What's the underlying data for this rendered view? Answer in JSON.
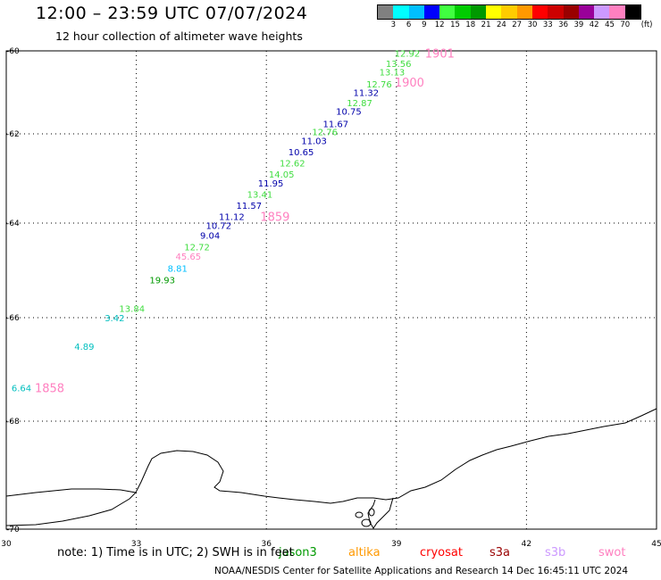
{
  "header": {
    "title": "12:00 – 23:59 UTC 07/07/2024",
    "subtitle": "12 hour collection of altimeter wave heights"
  },
  "legend": {
    "unit": "(ft)",
    "colors": [
      "#808080",
      "#00ffff",
      "#00bfff",
      "#0000ff",
      "#40ff40",
      "#00cc00",
      "#009900",
      "#ffff00",
      "#ffcc00",
      "#ff9900",
      "#ff0000",
      "#cc0000",
      "#990000",
      "#990099",
      "#cc99ff",
      "#ff80c0",
      "#000000"
    ],
    "labels": [
      "3",
      "6",
      "9",
      "12",
      "15",
      "18",
      "21",
      "24",
      "27",
      "30",
      "33",
      "36",
      "39",
      "42",
      "45",
      "70"
    ]
  },
  "map": {
    "lon_ticks": [
      "30",
      "33",
      "36",
      "39",
      "42",
      "45"
    ],
    "lat_ticks": [
      "-60",
      "-62",
      "-64",
      "-66",
      "-68",
      "-70"
    ],
    "lon_range": [
      30,
      45
    ],
    "lat_range": [
      -60,
      -70
    ]
  },
  "track_labels": [
    {
      "text": "1901",
      "lon": 40.0,
      "lat": -60.05,
      "color": "#ff80c0"
    },
    {
      "text": "1900",
      "lon": 39.3,
      "lat": -60.75,
      "color": "#ff80c0"
    },
    {
      "text": "1859",
      "lon": 36.2,
      "lat": -63.85,
      "color": "#ff80c0"
    },
    {
      "text": "1858",
      "lon": 31.0,
      "lat": -67.35,
      "color": "#ff80c0"
    }
  ],
  "wave_heights": [
    {
      "value": "12.92",
      "lon": 39.25,
      "lat": -60.05,
      "color": "#40dd40"
    },
    {
      "value": "13.56",
      "lon": 39.05,
      "lat": -60.3,
      "color": "#40dd40"
    },
    {
      "value": "13.13",
      "lon": 38.9,
      "lat": -60.5,
      "color": "#40dd40"
    },
    {
      "value": "12.76",
      "lon": 38.6,
      "lat": -60.8,
      "color": "#40dd40"
    },
    {
      "value": "11.32",
      "lon": 38.3,
      "lat": -61.0,
      "color": "#0000aa"
    },
    {
      "value": "12.87",
      "lon": 38.15,
      "lat": -61.25,
      "color": "#40dd40"
    },
    {
      "value": "10.75",
      "lon": 37.9,
      "lat": -61.45,
      "color": "#0000aa"
    },
    {
      "value": "11.67",
      "lon": 37.6,
      "lat": -61.75,
      "color": "#0000aa"
    },
    {
      "value": "12.76",
      "lon": 37.35,
      "lat": -61.95,
      "color": "#40dd40"
    },
    {
      "value": "11.03",
      "lon": 37.1,
      "lat": -62.15,
      "color": "#0000aa"
    },
    {
      "value": "10.65",
      "lon": 36.8,
      "lat": -62.4,
      "color": "#0000aa"
    },
    {
      "value": "12.62",
      "lon": 36.6,
      "lat": -62.65,
      "color": "#40dd40"
    },
    {
      "value": "14.05",
      "lon": 36.35,
      "lat": -62.9,
      "color": "#40dd40"
    },
    {
      "value": "11.95",
      "lon": 36.1,
      "lat": -63.1,
      "color": "#0000aa"
    },
    {
      "value": "13.41",
      "lon": 35.85,
      "lat": -63.35,
      "color": "#40dd40"
    },
    {
      "value": "11.57",
      "lon": 35.6,
      "lat": -63.6,
      "color": "#0000aa"
    },
    {
      "value": "11.12",
      "lon": 35.2,
      "lat": -63.85,
      "color": "#0000aa"
    },
    {
      "value": "10.72",
      "lon": 34.9,
      "lat": -64.05,
      "color": "#0000aa"
    },
    {
      "value": "9.04",
      "lon": 34.7,
      "lat": -64.25,
      "color": "#0000aa"
    },
    {
      "value": "12.72",
      "lon": 34.4,
      "lat": -64.5,
      "color": "#40dd40"
    },
    {
      "value": "45.65",
      "lon": 34.2,
      "lat": -64.7,
      "color": "#ff80c0"
    },
    {
      "value": "8.81",
      "lon": 33.95,
      "lat": -64.95,
      "color": "#00bfff"
    },
    {
      "value": "19.93",
      "lon": 33.6,
      "lat": -65.2,
      "color": "#009900"
    },
    {
      "value": "13.84",
      "lon": 32.9,
      "lat": -65.8,
      "color": "#40dd40"
    },
    {
      "value": "3.42",
      "lon": 32.5,
      "lat": -66.0,
      "color": "#00bfbf"
    },
    {
      "value": "4.89",
      "lon": 31.8,
      "lat": -66.55,
      "color": "#00bfbf"
    },
    {
      "value": "6.64",
      "lon": 30.35,
      "lat": -67.35,
      "color": "#00bfbf"
    }
  ],
  "footer": {
    "note": "note:  1) Time is in UTC;  2) SWH is in feet",
    "credit": "NOAA/NESDIS Center for Satellite Applications and Research    14 Dec 16:45:11 UTC 2024",
    "satellites": [
      {
        "name": "jason3",
        "color": "#009900"
      },
      {
        "name": "altika",
        "color": "#ff9900"
      },
      {
        "name": "cryosat",
        "color": "#ff0000"
      },
      {
        "name": "s3a",
        "color": "#990000"
      },
      {
        "name": "s3b",
        "color": "#cc99ff"
      },
      {
        "name": "swot",
        "color": "#ff80c0"
      }
    ]
  }
}
